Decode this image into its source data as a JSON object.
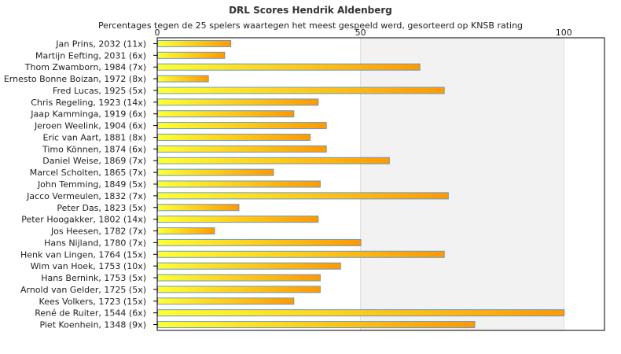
{
  "chart_data": {
    "type": "bar",
    "orientation": "horizontal",
    "title": "DRL Scores Hendrik Aldenberg",
    "subtitle": "Percentages tegen de 25 spelers waartegen het meest gespeeld werd, gesorteerd op KNSB rating",
    "xlim": [
      0,
      110
    ],
    "xticks": [
      0,
      50,
      100
    ],
    "xtick_labels": [
      "0",
      "50",
      "100"
    ],
    "xaxis_position": "top",
    "grid": true,
    "legend": "none",
    "categories": [
      "Jan Prins, 2032 (11x)",
      "Martijn Eefting, 2031 (6x)",
      "Thom Zwamborn, 1984 (7x)",
      "Ernesto Bonne Boizan, 1972 (8x)",
      "Fred Lucas, 1925 (5x)",
      "Chris Regeling, 1923 (14x)",
      "Jaap Kamminga, 1919 (6x)",
      "Jeroen Weelink, 1904 (6x)",
      "Eric van Aart, 1881 (8x)",
      "Timo Können, 1874 (6x)",
      "Daniel Weise, 1869 (7x)",
      "Marcel Scholten, 1865 (7x)",
      "John Temming, 1849 (5x)",
      "Jacco Vermeulen, 1832 (7x)",
      "Peter Das, 1823 (5x)",
      "Peter Hoogakker, 1802 (14x)",
      "Jos Heesen, 1782 (7x)",
      "Hans Nijland, 1780 (7x)",
      "Henk van Lingen, 1764 (15x)",
      "Wim van Hoek, 1753 (10x)",
      "Hans Bernink, 1753 (5x)",
      "Arnold van Gelder, 1725 (5x)",
      "Kees Volkers, 1723 (15x)",
      "René de Ruiter, 1544 (6x)",
      "Piet Koenhein, 1348 (9x)"
    ],
    "values": [
      18,
      16.5,
      64.5,
      12.5,
      70.5,
      39.5,
      33.5,
      41.5,
      37.5,
      41.5,
      57,
      28.5,
      40,
      71.5,
      20,
      39.5,
      14,
      50,
      70.5,
      45,
      40,
      40,
      33.5,
      100,
      78
    ],
    "colors": {
      "bar_gradient_start": "#ffff33",
      "bar_gradient_end": "#ff9900",
      "bar_border": "#6699cc",
      "plot_background": "#ffffff",
      "plot_band": "#f2f2f2",
      "gridline": "#dddddd",
      "axis": "#000000"
    }
  }
}
